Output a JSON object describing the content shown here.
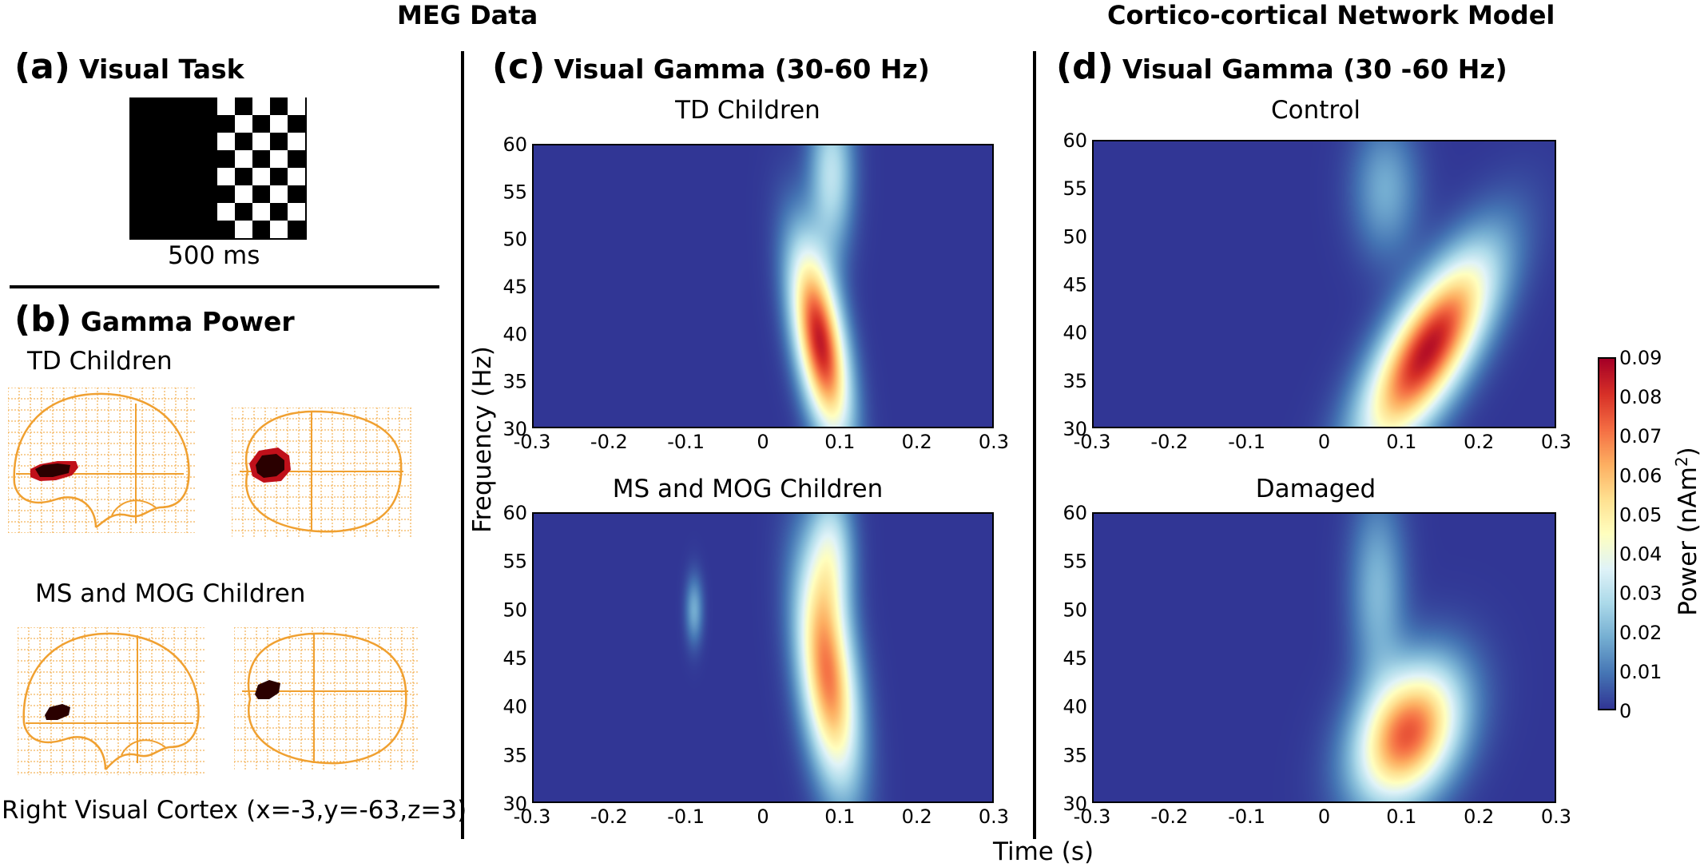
{
  "header": {
    "meg_title": "MEG Data",
    "model_title": "Cortico-cortical Network Model"
  },
  "panel_a": {
    "letter": "(a)",
    "title": "Visual Task",
    "stimulus_duration": "500 ms"
  },
  "panel_b": {
    "letter": "(b)",
    "title": "Gamma Power",
    "group1": "TD Children",
    "group2": "MS and MOG Children",
    "location": "Right Visual Cortex (x=-3,y=-63,z=3)"
  },
  "panel_c": {
    "letter": "(c)",
    "title": "Visual Gamma (30-60 Hz)",
    "sub1": "TD Children",
    "sub2": "MS and MOG Children"
  },
  "panel_d": {
    "letter": "(d)",
    "title": "Visual Gamma (30 -60 Hz)",
    "sub1": "Control",
    "sub2": "Damaged"
  },
  "axes": {
    "ylabel": "Frequency (Hz)",
    "xlabel": "Time (s)",
    "x_ticks": [
      "-0.3",
      "-0.2",
      "-0.1",
      "0",
      "0.1",
      "0.2",
      "0.3"
    ],
    "y_ticks": [
      "60",
      "55",
      "50",
      "45",
      "40",
      "35",
      "30"
    ]
  },
  "colorbar": {
    "label": "Power (nAm",
    "label_sup": "2",
    "label_close": ")",
    "ticks": [
      "0.09",
      "0.08",
      "0.07",
      "0.06",
      "0.05",
      "0.04",
      "0.03",
      "0.02",
      "0.01",
      "0"
    ]
  },
  "colors": {
    "background_map": "#313695",
    "brain_outline": "#f0a030",
    "blob_dark": "#2a0000",
    "blob_red": "#c0101a"
  },
  "chart_data": [
    {
      "type": "heatmap",
      "title": "TD Children",
      "xlabel": "Time (s)",
      "ylabel": "Frequency (Hz)",
      "xlim": [
        -0.3,
        0.3
      ],
      "ylim": [
        30,
        60
      ],
      "colorbar_range": [
        0,
        0.09
      ],
      "blobs": [
        {
          "t_center": 0.075,
          "f_center": 39,
          "t_spread": 0.022,
          "f_spread": 7,
          "tilt": -0.002,
          "peak": 0.085
        },
        {
          "t_center": 0.09,
          "f_center": 57,
          "t_spread": 0.02,
          "f_spread": 6,
          "tilt": 0,
          "peak": 0.03
        }
      ]
    },
    {
      "type": "heatmap",
      "title": "MS and MOG Children",
      "xlabel": "Time (s)",
      "ylabel": "Frequency (Hz)",
      "xlim": [
        -0.3,
        0.3
      ],
      "ylim": [
        30,
        60
      ],
      "colorbar_range": [
        0,
        0.09
      ],
      "blobs": [
        {
          "t_center": 0.085,
          "f_center": 43,
          "t_spread": 0.025,
          "f_spread": 8,
          "tilt": -0.0015,
          "peak": 0.07
        },
        {
          "t_center": 0.09,
          "f_center": 56,
          "t_spread": 0.02,
          "f_spread": 5,
          "tilt": 0,
          "peak": 0.03
        },
        {
          "t_center": -0.09,
          "f_center": 50,
          "t_spread": 0.008,
          "f_spread": 2.5,
          "tilt": 0,
          "peak": 0.018
        }
      ]
    },
    {
      "type": "heatmap",
      "title": "Control",
      "xlabel": "Time (s)",
      "ylabel": "Frequency (Hz)",
      "xlim": [
        -0.3,
        0.3
      ],
      "ylim": [
        30,
        60
      ],
      "colorbar_range": [
        0,
        0.09
      ],
      "blobs": [
        {
          "t_center": 0.135,
          "f_center": 38,
          "t_spread": 0.04,
          "f_spread": 7,
          "tilt": 0.006,
          "peak": 0.087
        },
        {
          "t_center": 0.08,
          "f_center": 55,
          "t_spread": 0.03,
          "f_spread": 5,
          "tilt": 0,
          "peak": 0.018
        }
      ]
    },
    {
      "type": "heatmap",
      "title": "Damaged",
      "xlabel": "Time (s)",
      "ylabel": "Frequency (Hz)",
      "xlim": [
        -0.3,
        0.3
      ],
      "ylim": [
        30,
        60
      ],
      "colorbar_range": [
        0,
        0.09
      ],
      "blobs": [
        {
          "t_center": 0.11,
          "f_center": 37,
          "t_spread": 0.045,
          "f_spread": 5,
          "tilt": 0.003,
          "peak": 0.075
        },
        {
          "t_center": 0.07,
          "f_center": 52,
          "t_spread": 0.025,
          "f_spread": 7,
          "tilt": 0,
          "peak": 0.02
        }
      ]
    }
  ]
}
